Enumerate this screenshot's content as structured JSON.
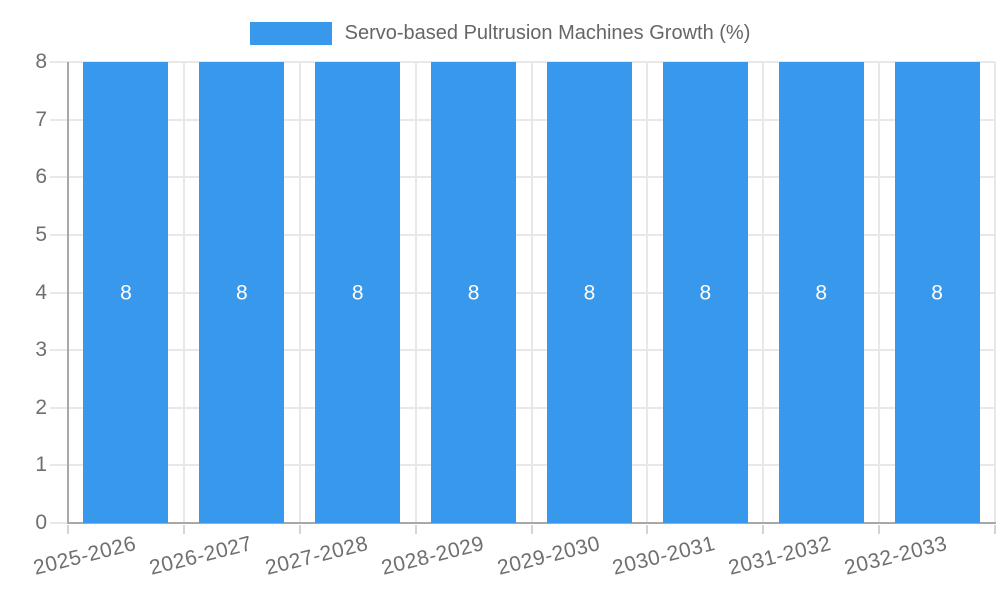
{
  "chart_data": {
    "type": "bar",
    "title": "Servo-based Pultrusion Machines Growth (%)",
    "legend": {
      "position": "top",
      "label": "Servo-based Pultrusion Machines Growth (%)"
    },
    "categories": [
      "2025-2026",
      "2026-2027",
      "2027-2028",
      "2028-2029",
      "2029-2030",
      "2030-2031",
      "2031-2032",
      "2032-2033"
    ],
    "series": [
      {
        "name": "Servo-based Pultrusion Machines Growth (%)",
        "values": [
          8,
          8,
          8,
          8,
          8,
          8,
          8,
          8
        ]
      }
    ],
    "data_labels": [
      "8",
      "8",
      "8",
      "8",
      "8",
      "8",
      "8",
      "8"
    ],
    "xlabel": "",
    "ylabel": "",
    "ylim": [
      0,
      8
    ],
    "yticks": [
      "0",
      "1",
      "2",
      "3",
      "4",
      "5",
      "6",
      "7",
      "8"
    ],
    "x_tick_rotation_deg": -14,
    "grid": true,
    "colors": {
      "bar": "#3898ec",
      "bar_label": "#ffffff",
      "gridline": "#e8e8e8",
      "axis_line": "#a8a8a8",
      "tick_mark": "#d4d4d4",
      "tick_text": "#6f6f6f",
      "legend_text": "#666666",
      "background": "#ffffff"
    }
  }
}
